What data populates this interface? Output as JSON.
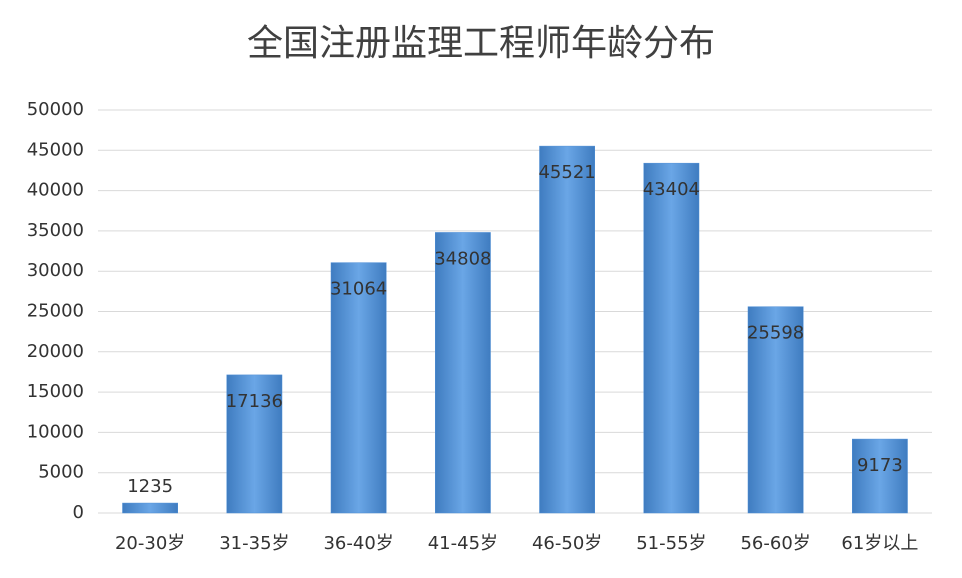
{
  "chart_data": {
    "type": "bar",
    "title": "全国注册监理工程师年龄分布",
    "categories": [
      "20-30岁",
      "31-35岁",
      "36-40岁",
      "41-45岁",
      "46-50岁",
      "51-55岁",
      "56-60岁",
      "61岁以上"
    ],
    "values": [
      1235,
      17136,
      31064,
      34808,
      45521,
      43404,
      25598,
      9173
    ],
    "color": "#4f8fd6",
    "ylim": [
      0,
      50000
    ],
    "yticks": [
      0,
      5000,
      10000,
      15000,
      20000,
      25000,
      30000,
      35000,
      40000,
      45000,
      50000
    ],
    "grid": true
  }
}
